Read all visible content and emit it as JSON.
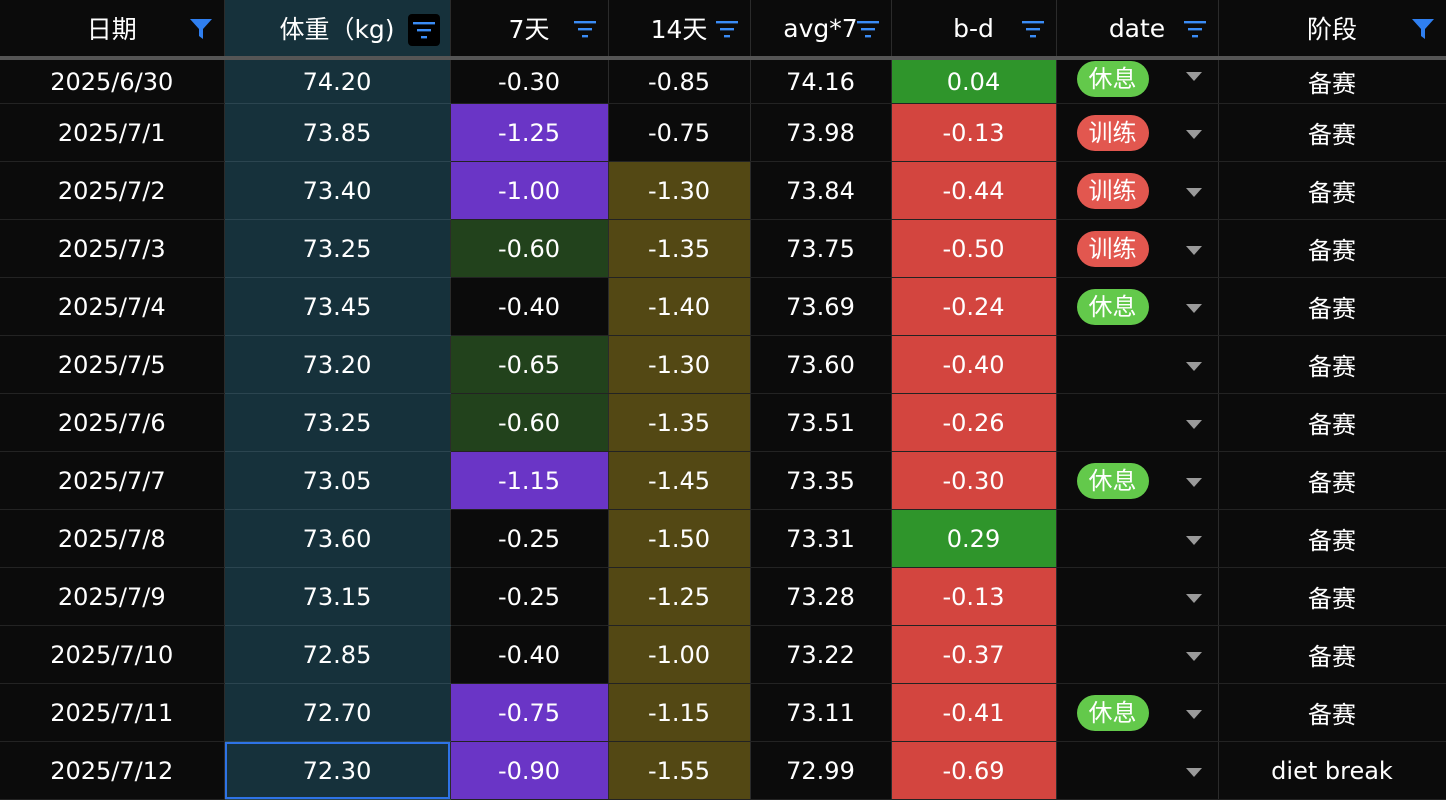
{
  "colors": {
    "purple": "#6a35c6",
    "dark_green": "#22421c",
    "olive": "#534814",
    "green": "#2f952b",
    "red": "#d3453f",
    "black": "#0b0b0b",
    "weight_bg": "#16313b",
    "pill_rest": "#63c94b",
    "pill_train": "#e2574f",
    "filter_blue": "#2f7ff0",
    "sort_blue": "#3a8cf6"
  },
  "headers": [
    {
      "label": "日期",
      "icon": "filter-funnel-icon"
    },
    {
      "label": "体重（kg)",
      "icon": "sort-lines-icon"
    },
    {
      "label": "7天",
      "icon": "sort-lines-icon"
    },
    {
      "label": "14天",
      "icon": "sort-lines-icon"
    },
    {
      "label": "avg*7",
      "icon": "sort-lines-icon"
    },
    {
      "label": "b-d",
      "icon": "sort-lines-icon"
    },
    {
      "label": "date",
      "icon": "sort-lines-icon"
    },
    {
      "label": "阶段",
      "icon": "filter-funnel-icon"
    }
  ],
  "rows": [
    {
      "date": "2025/6/30",
      "weight": "74.20",
      "d7": "-0.30",
      "d7c": "black",
      "d14": "-0.85",
      "d14c": "black",
      "avg": "74.16",
      "bd": "0.04",
      "bdc": "green",
      "tag": "休息",
      "tagc": "rest",
      "stage": "备赛"
    },
    {
      "date": "2025/7/1",
      "weight": "73.85",
      "d7": "-1.25",
      "d7c": "purple",
      "d14": "-0.75",
      "d14c": "black",
      "avg": "73.98",
      "bd": "-0.13",
      "bdc": "red",
      "tag": "训练",
      "tagc": "train",
      "stage": "备赛"
    },
    {
      "date": "2025/7/2",
      "weight": "73.40",
      "d7": "-1.00",
      "d7c": "purple",
      "d14": "-1.30",
      "d14c": "olive",
      "avg": "73.84",
      "bd": "-0.44",
      "bdc": "red",
      "tag": "训练",
      "tagc": "train",
      "stage": "备赛"
    },
    {
      "date": "2025/7/3",
      "weight": "73.25",
      "d7": "-0.60",
      "d7c": "dark_green",
      "d14": "-1.35",
      "d14c": "olive",
      "avg": "73.75",
      "bd": "-0.50",
      "bdc": "red",
      "tag": "训练",
      "tagc": "train",
      "stage": "备赛"
    },
    {
      "date": "2025/7/4",
      "weight": "73.45",
      "d7": "-0.40",
      "d7c": "black",
      "d14": "-1.40",
      "d14c": "olive",
      "avg": "73.69",
      "bd": "-0.24",
      "bdc": "red",
      "tag": "休息",
      "tagc": "rest",
      "stage": "备赛"
    },
    {
      "date": "2025/7/5",
      "weight": "73.20",
      "d7": "-0.65",
      "d7c": "dark_green",
      "d14": "-1.30",
      "d14c": "olive",
      "avg": "73.60",
      "bd": "-0.40",
      "bdc": "red",
      "tag": "",
      "tagc": "",
      "stage": "备赛"
    },
    {
      "date": "2025/7/6",
      "weight": "73.25",
      "d7": "-0.60",
      "d7c": "dark_green",
      "d14": "-1.35",
      "d14c": "olive",
      "avg": "73.51",
      "bd": "-0.26",
      "bdc": "red",
      "tag": "",
      "tagc": "",
      "stage": "备赛"
    },
    {
      "date": "2025/7/7",
      "weight": "73.05",
      "d7": "-1.15",
      "d7c": "purple",
      "d14": "-1.45",
      "d14c": "olive",
      "avg": "73.35",
      "bd": "-0.30",
      "bdc": "red",
      "tag": "休息",
      "tagc": "rest",
      "stage": "备赛"
    },
    {
      "date": "2025/7/8",
      "weight": "73.60",
      "d7": "-0.25",
      "d7c": "black",
      "d14": "-1.50",
      "d14c": "olive",
      "avg": "73.31",
      "bd": "0.29",
      "bdc": "green",
      "tag": "",
      "tagc": "",
      "stage": "备赛"
    },
    {
      "date": "2025/7/9",
      "weight": "73.15",
      "d7": "-0.25",
      "d7c": "black",
      "d14": "-1.25",
      "d14c": "olive",
      "avg": "73.28",
      "bd": "-0.13",
      "bdc": "red",
      "tag": "",
      "tagc": "",
      "stage": "备赛"
    },
    {
      "date": "2025/7/10",
      "weight": "72.85",
      "d7": "-0.40",
      "d7c": "black",
      "d14": "-1.00",
      "d14c": "olive",
      "avg": "73.22",
      "bd": "-0.37",
      "bdc": "red",
      "tag": "",
      "tagc": "",
      "stage": "备赛"
    },
    {
      "date": "2025/7/11",
      "weight": "72.70",
      "d7": "-0.75",
      "d7c": "purple",
      "d14": "-1.15",
      "d14c": "olive",
      "avg": "73.11",
      "bd": "-0.41",
      "bdc": "red",
      "tag": "休息",
      "tagc": "rest",
      "stage": "备赛"
    },
    {
      "date": "2025/7/12",
      "weight": "72.30",
      "d7": "-0.90",
      "d7c": "purple",
      "d14": "-1.55",
      "d14c": "olive",
      "avg": "72.99",
      "bd": "-0.69",
      "bdc": "red",
      "tag": "",
      "tagc": "",
      "stage": "diet break"
    }
  ],
  "selected_row": 12
}
